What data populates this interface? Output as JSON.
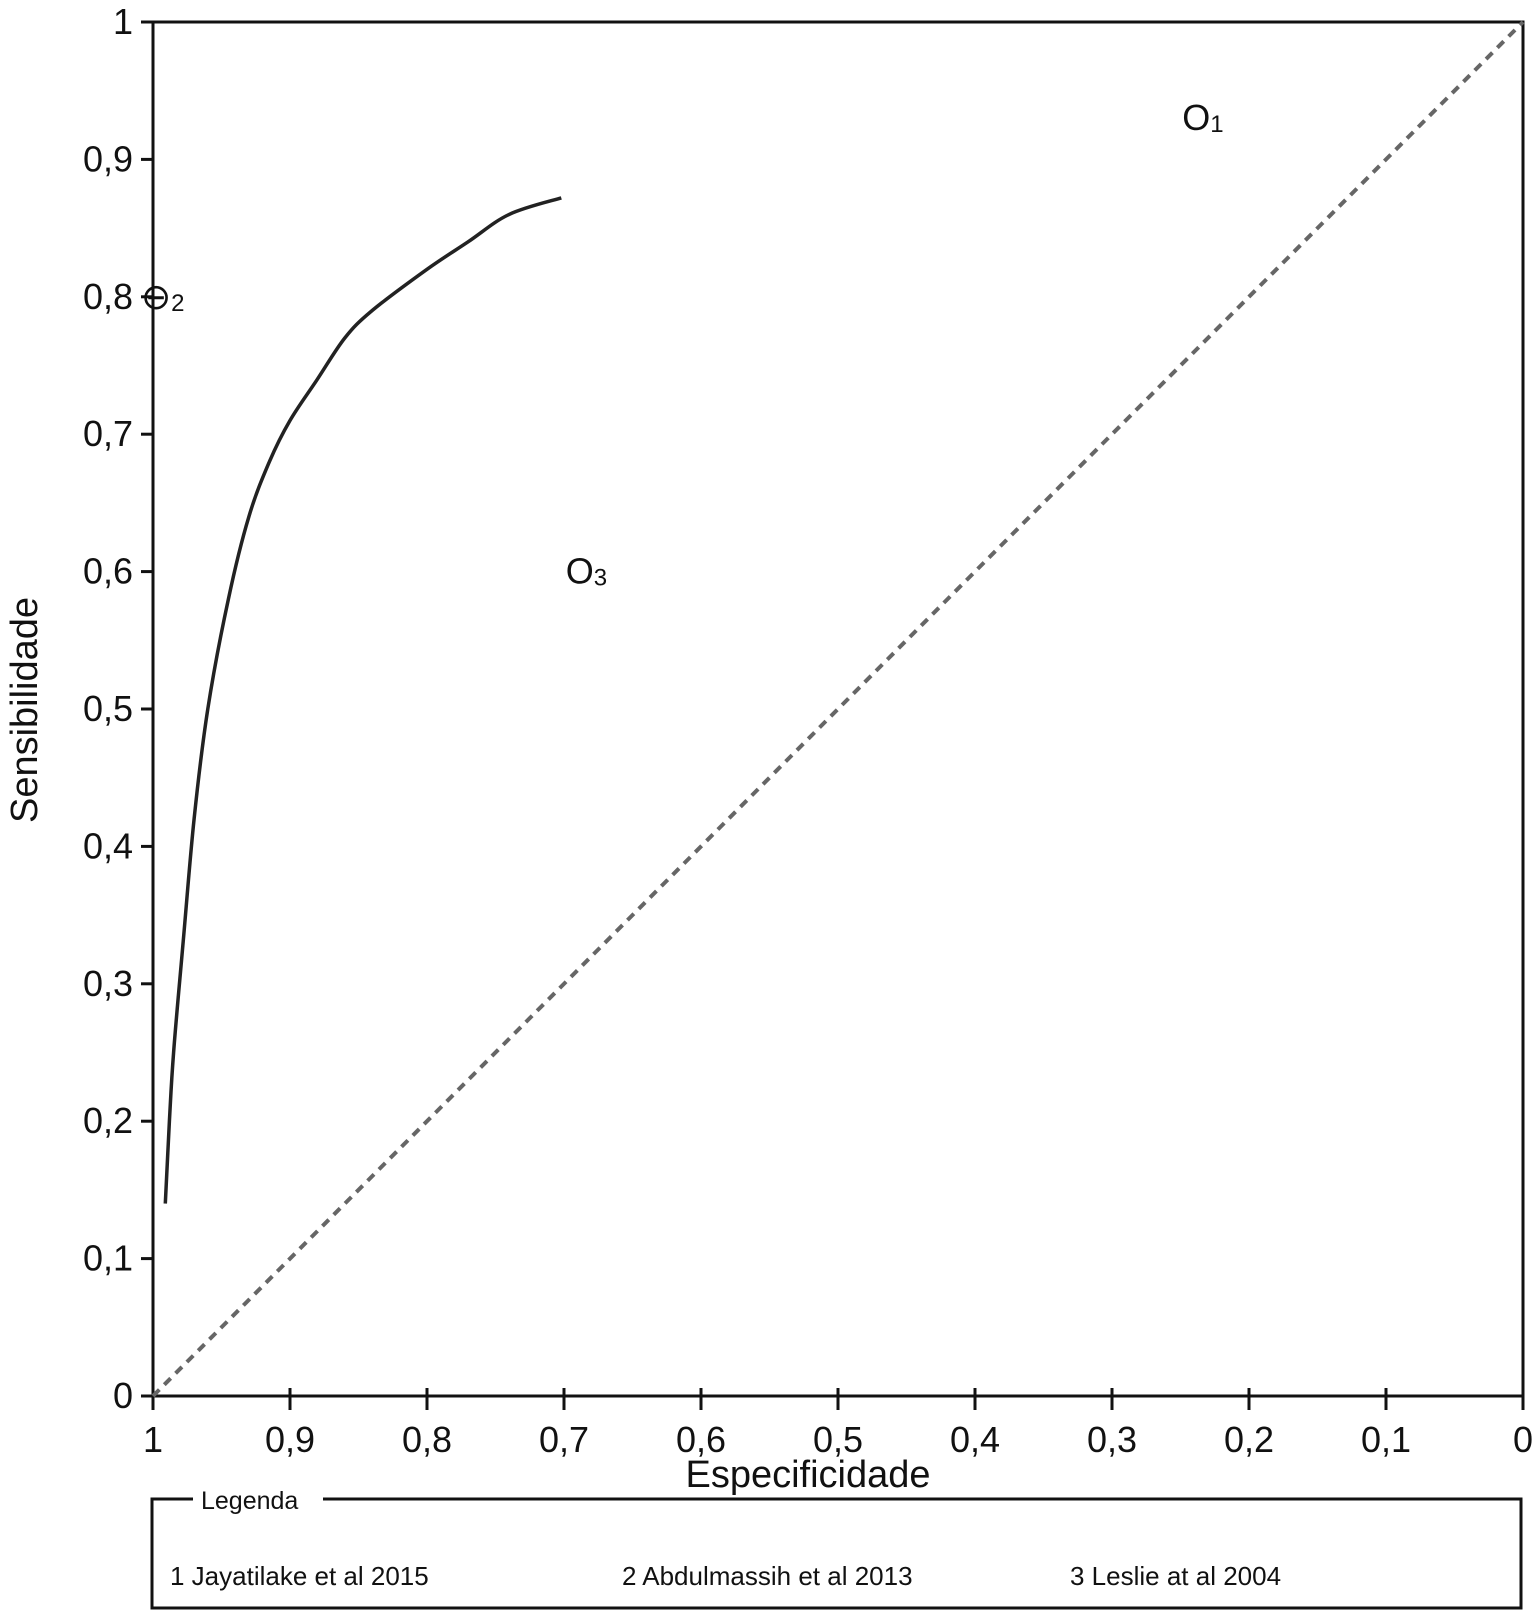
{
  "chart_data": {
    "type": "scatter",
    "xlabel": "Especificidade",
    "ylabel": "Sensibilidade",
    "xlim": [
      1,
      0
    ],
    "ylim": [
      0,
      1
    ],
    "x_ticks": [
      "1",
      "0,9",
      "0,8",
      "0,7",
      "0,6",
      "0,5",
      "0,4",
      "0,3",
      "0,2",
      "0,1",
      "0"
    ],
    "y_ticks": [
      "0",
      "0,1",
      "0,2",
      "0,3",
      "0,4",
      "0,5",
      "0,6",
      "0,7",
      "0,8",
      "0,9",
      "1"
    ],
    "x_tick_values": [
      1,
      0.9,
      0.8,
      0.7,
      0.6,
      0.5,
      0.4,
      0.3,
      0.2,
      0.1,
      0
    ],
    "y_tick_values": [
      0,
      0.1,
      0.2,
      0.3,
      0.4,
      0.5,
      0.6,
      0.7,
      0.8,
      0.9,
      1
    ],
    "grid": false,
    "reference_line": {
      "style": "dashed",
      "from": [
        1,
        0
      ],
      "to": [
        0,
        1
      ]
    },
    "sroc_curve": {
      "style": "solid",
      "points": [
        [
          0.991,
          0.14
        ],
        [
          0.988,
          0.2
        ],
        [
          0.985,
          0.25
        ],
        [
          0.978,
          0.33
        ],
        [
          0.97,
          0.42
        ],
        [
          0.96,
          0.5
        ],
        [
          0.945,
          0.58
        ],
        [
          0.93,
          0.64
        ],
        [
          0.915,
          0.68
        ],
        [
          0.9,
          0.71
        ],
        [
          0.88,
          0.74
        ],
        [
          0.86,
          0.77
        ],
        [
          0.84,
          0.79
        ],
        [
          0.8,
          0.82
        ],
        [
          0.77,
          0.84
        ],
        [
          0.74,
          0.86
        ],
        [
          0.702,
          0.872
        ]
      ]
    },
    "studies": [
      {
        "marker": "O",
        "label": "1",
        "x": 0.24,
        "y": 0.93
      },
      {
        "marker": "⊖",
        "label": "2",
        "x": 1.0,
        "y": 0.8
      },
      {
        "marker": "O",
        "label": "3",
        "x": 0.69,
        "y": 0.6
      }
    ],
    "legend": {
      "title": "Legenda",
      "position": "bottom",
      "items": [
        "1 Jayatilake et al 2015",
        "2 Abdulmassih et al 2013",
        "3 Leslie at al 2004"
      ]
    }
  }
}
